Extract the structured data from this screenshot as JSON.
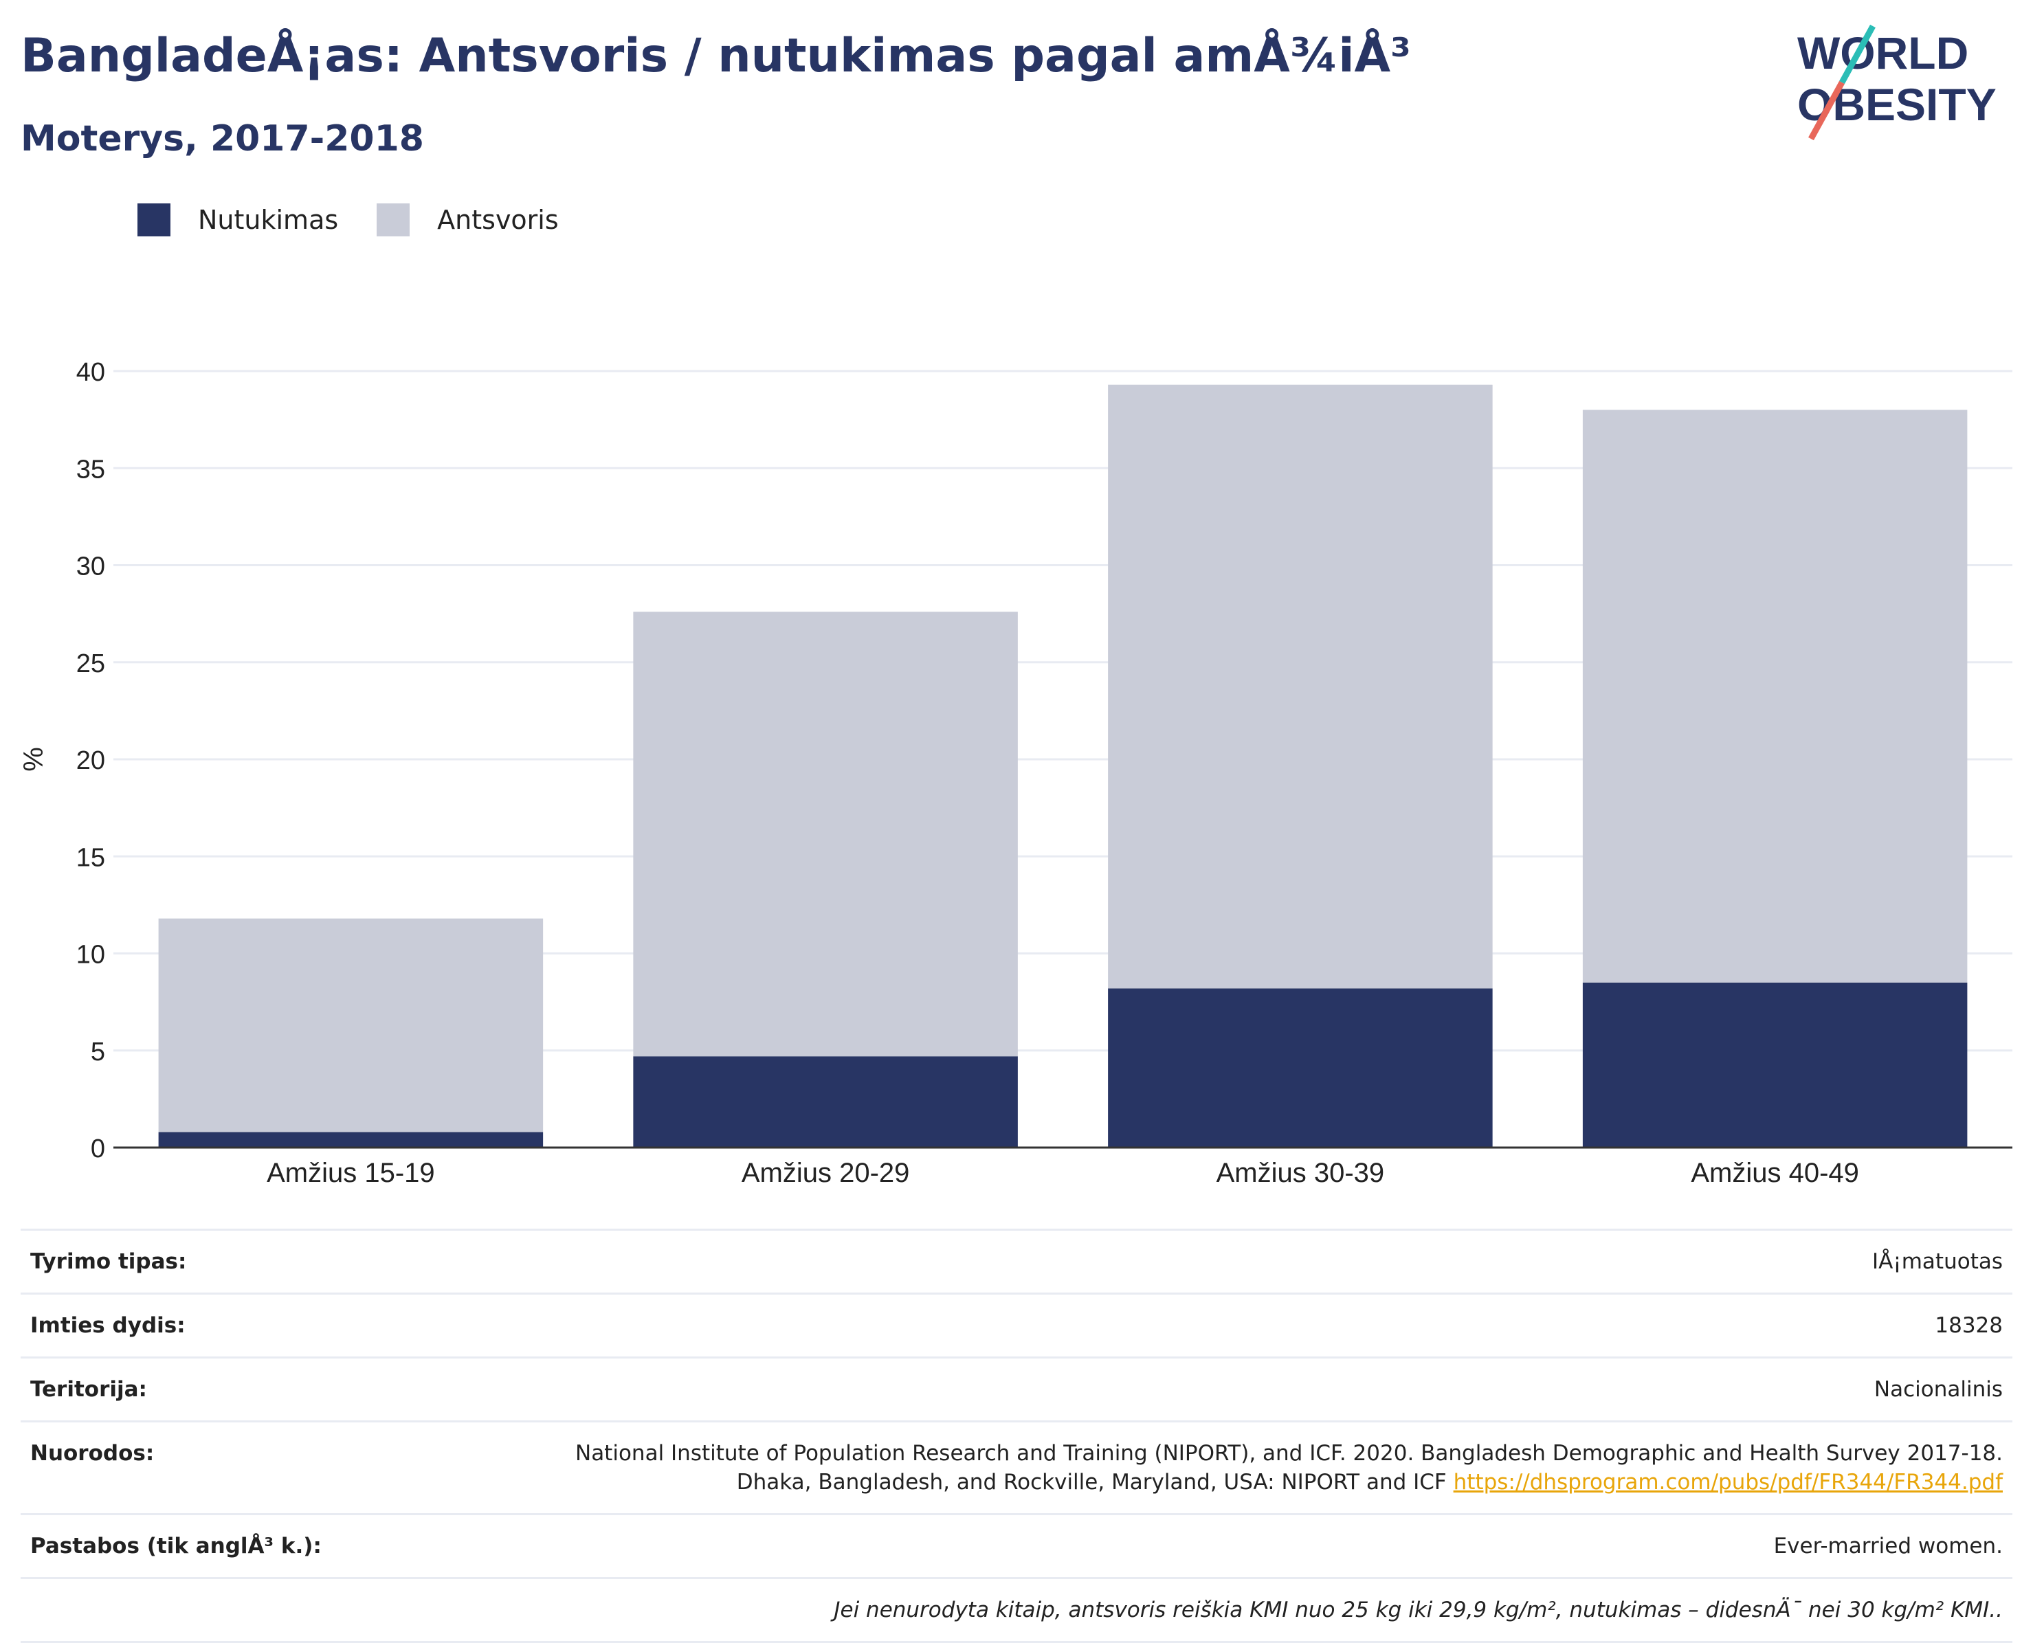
{
  "header": {
    "title": "BangladeÅ¡as: Antsvoris / nutukimas pagal amÅ¾iÅ³",
    "subtitle": "Moterys, 2017-2018",
    "logo_line1": "WORLD",
    "logo_line2": "OBESITY"
  },
  "colors": {
    "obesity": "#283564",
    "overweight": "#c9ccd8",
    "accent_teal": "#2bbdb6",
    "accent_red": "#e8675a",
    "link": "#e8a50a"
  },
  "chart_data": {
    "type": "bar",
    "stacked": true,
    "categories": [
      "Amžius 15-19",
      "Amžius 20-29",
      "Amžius 30-39",
      "Amžius 40-49"
    ],
    "series": [
      {
        "name": "Nutukimas",
        "values": [
          0.8,
          4.7,
          8.2,
          8.5
        ]
      },
      {
        "name": "Antsvoris",
        "values": [
          11.0,
          22.9,
          31.1,
          29.5
        ]
      }
    ],
    "ylabel": "%",
    "xlabel": "",
    "ylim": [
      0,
      40
    ],
    "yticks": [
      0,
      5,
      10,
      15,
      20,
      25,
      30,
      35,
      40
    ],
    "grid": true,
    "legend_position": "top-left"
  },
  "meta": {
    "rows": [
      {
        "label": "Tyrimo tipas:",
        "value": "IÅ¡matuotas"
      },
      {
        "label": "Imties dydis:",
        "value": "18328"
      },
      {
        "label": "Teritorija:",
        "value": "Nacionalinis"
      }
    ],
    "references": {
      "label": "Nuorodos:",
      "line1": "National Institute of Population Research and Training (NIPORT), and ICF. 2020. Bangladesh Demographic and Health Survey 2017-18.",
      "line2": "Dhaka, Bangladesh, and Rockville, Maryland, USA: NIPORT and ICF",
      "link": "https://dhsprogram.com/pubs/pdf/FR344/FR344.pdf"
    },
    "notes": {
      "label": "Pastabos (tik anglÅ³ k.):",
      "value": "Ever-married women."
    },
    "footnote": "Jei nenurodyta kitaip, antsvoris reiškia KMI nuo 25 kg iki 29,9 kg/m², nutukimas – didesnÄ¯ nei 30 kg/m² KMI.."
  }
}
